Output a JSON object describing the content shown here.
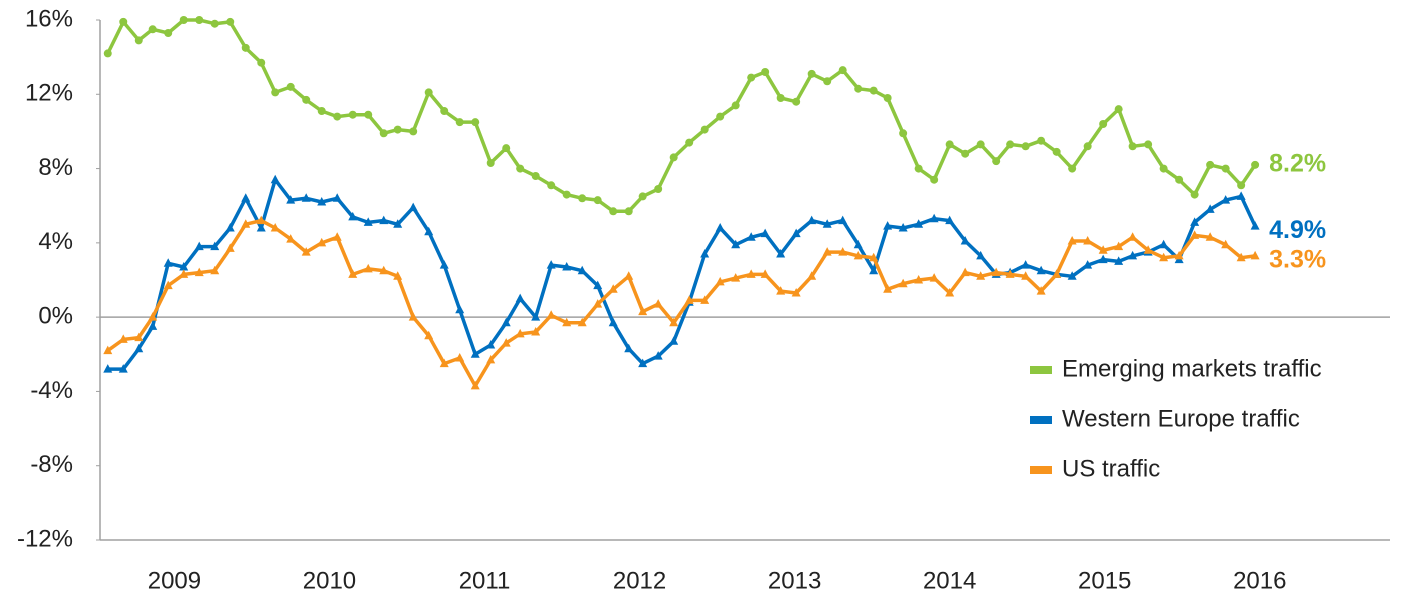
{
  "chart_data": {
    "type": "line",
    "x": [
      2008.57,
      2008.67,
      2008.77,
      2008.86,
      2008.96,
      2009.06,
      2009.16,
      2009.26,
      2009.36,
      2009.46,
      2009.56,
      2009.65,
      2009.75,
      2009.85,
      2009.95,
      2010.05,
      2010.15,
      2010.25,
      2010.35,
      2010.44,
      2010.54,
      2010.64,
      2010.74,
      2010.84,
      2010.94,
      2011.04,
      2011.14,
      2011.23,
      2011.33,
      2011.43,
      2011.53,
      2011.63,
      2011.73,
      2011.83,
      2011.93,
      2012.02,
      2012.12,
      2012.22,
      2012.32,
      2012.42,
      2012.52,
      2012.62,
      2012.72,
      2012.81,
      2012.91,
      2013.01,
      2013.11,
      2013.21,
      2013.31,
      2013.41,
      2013.51,
      2013.6,
      2013.7,
      2013.8,
      2013.9,
      2014.0,
      2014.1,
      2014.2,
      2014.3,
      2014.39,
      2014.49,
      2014.59,
      2014.69,
      2014.79,
      2014.89,
      2014.99,
      2015.09,
      2015.18,
      2015.28,
      2015.38,
      2015.48,
      2015.58,
      2015.68,
      2015.78,
      2015.88,
      2015.97
    ],
    "series": [
      {
        "name": "Emerging markets traffic",
        "color": "#8dc63f",
        "marker": "circle",
        "end_label": "8.2%",
        "values": [
          14.2,
          15.9,
          14.9,
          15.5,
          15.3,
          16.0,
          16.0,
          15.8,
          15.9,
          14.5,
          13.7,
          12.1,
          12.4,
          11.7,
          11.1,
          10.8,
          10.9,
          10.9,
          9.9,
          10.1,
          10.0,
          12.1,
          11.1,
          10.5,
          10.5,
          8.3,
          9.1,
          8.0,
          7.6,
          7.1,
          6.6,
          6.4,
          6.3,
          5.7,
          5.7,
          6.5,
          6.9,
          8.6,
          9.4,
          10.1,
          10.8,
          11.4,
          12.9,
          13.2,
          11.8,
          11.6,
          13.1,
          12.7,
          13.3,
          12.3,
          12.2,
          11.8,
          9.9,
          8.0,
          7.4,
          9.3,
          8.8,
          9.3,
          8.4,
          9.3,
          9.2,
          9.5,
          8.9,
          8.0,
          9.2,
          10.4,
          11.2,
          9.2,
          9.3,
          8.0,
          7.4,
          6.6,
          8.2,
          8.0,
          7.1,
          8.2
        ]
      },
      {
        "name": "Western Europe traffic",
        "color": "#0070c0",
        "marker": "triangle",
        "end_label": "4.9%",
        "values": [
          -2.8,
          -2.8,
          -1.7,
          -0.5,
          2.9,
          2.7,
          3.8,
          3.8,
          4.8,
          6.4,
          4.8,
          7.4,
          6.3,
          6.4,
          6.2,
          6.4,
          5.4,
          5.1,
          5.2,
          5.0,
          5.9,
          4.6,
          2.8,
          0.4,
          -2.0,
          -1.5,
          -0.3,
          1.0,
          0.0,
          2.8,
          2.7,
          2.5,
          1.7,
          -0.3,
          -1.7,
          -2.5,
          -2.1,
          -1.3,
          0.8,
          3.4,
          4.8,
          3.9,
          4.3,
          4.5,
          3.4,
          4.5,
          5.2,
          5.0,
          5.2,
          3.9,
          2.5,
          4.9,
          4.8,
          5.0,
          5.3,
          5.2,
          4.1,
          3.3,
          2.3,
          2.4,
          2.8,
          2.5,
          2.3,
          2.2,
          2.8,
          3.1,
          3.0,
          3.3,
          3.5,
          3.9,
          3.1,
          5.1,
          5.8,
          6.3,
          6.5,
          4.9
        ]
      },
      {
        "name": "US traffic",
        "color": "#f7941d",
        "marker": "triangle",
        "end_label": "3.3%",
        "values": [
          -1.8,
          -1.2,
          -1.1,
          0.0,
          1.7,
          2.3,
          2.4,
          2.5,
          3.7,
          5.0,
          5.2,
          4.8,
          4.2,
          3.5,
          4.0,
          4.3,
          2.3,
          2.6,
          2.5,
          2.2,
          0.0,
          -1.0,
          -2.5,
          -2.2,
          -3.7,
          -2.3,
          -1.4,
          -0.9,
          -0.8,
          0.1,
          -0.3,
          -0.3,
          0.7,
          1.5,
          2.2,
          0.3,
          0.7,
          -0.3,
          0.9,
          0.9,
          1.9,
          2.1,
          2.3,
          2.3,
          1.4,
          1.3,
          2.2,
          3.5,
          3.5,
          3.3,
          3.2,
          1.5,
          1.8,
          2.0,
          2.1,
          1.3,
          2.4,
          2.2,
          2.4,
          2.3,
          2.2,
          1.4,
          2.3,
          4.1,
          4.1,
          3.6,
          3.8,
          4.3,
          3.6,
          3.2,
          3.3,
          4.4,
          4.3,
          3.9,
          3.2,
          3.3
        ]
      }
    ],
    "xlim": [
      2008.52,
      2016.84
    ],
    "xticks": [
      2009,
      2010,
      2011,
      2012,
      2013,
      2014,
      2015,
      2016
    ],
    "ylim": [
      -12,
      16
    ],
    "yticks": [
      {
        "value": -12,
        "label": "-12%"
      },
      {
        "value": -8,
        "label": "-8%"
      },
      {
        "value": -4,
        "label": "-4%"
      },
      {
        "value": 0,
        "label": "0%"
      },
      {
        "value": 4,
        "label": "4%"
      },
      {
        "value": 8,
        "label": "8%"
      },
      {
        "value": 12,
        "label": "12%"
      },
      {
        "value": 16,
        "label": "16%"
      }
    ],
    "legend": "lower right"
  }
}
